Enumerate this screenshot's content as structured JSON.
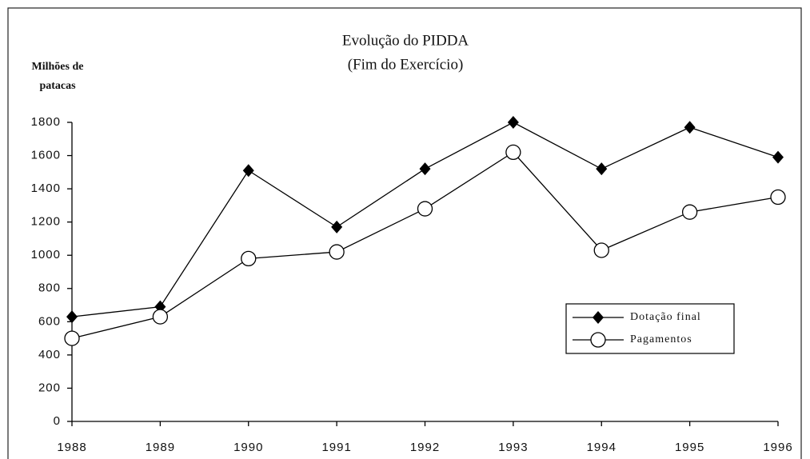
{
  "chart_data": {
    "type": "line",
    "title": "Evolução do PIDDA",
    "subtitle": "(Fim do Exercício)",
    "y_label": [
      "Milhões de",
      "patacas"
    ],
    "categories": [
      "1988",
      "1989",
      "1990",
      "1991",
      "1992",
      "1993",
      "1994",
      "1995",
      "1996"
    ],
    "series": [
      {
        "name": "Dotação final",
        "color": "#000000",
        "marker": "diamond",
        "values": [
          630,
          690,
          1510,
          1170,
          1520,
          1800,
          1520,
          1770,
          1590
        ]
      },
      {
        "name": "Pagamentos",
        "color": "#000000",
        "marker": "circle",
        "values": [
          500,
          630,
          980,
          1020,
          1280,
          1620,
          1030,
          1260,
          1350
        ]
      }
    ],
    "ylim": [
      0,
      1800
    ],
    "yticks": [
      0,
      200,
      400,
      600,
      800,
      1000,
      1200,
      1400,
      1600,
      1800
    ],
    "grid": false,
    "legend_position": "right"
  }
}
